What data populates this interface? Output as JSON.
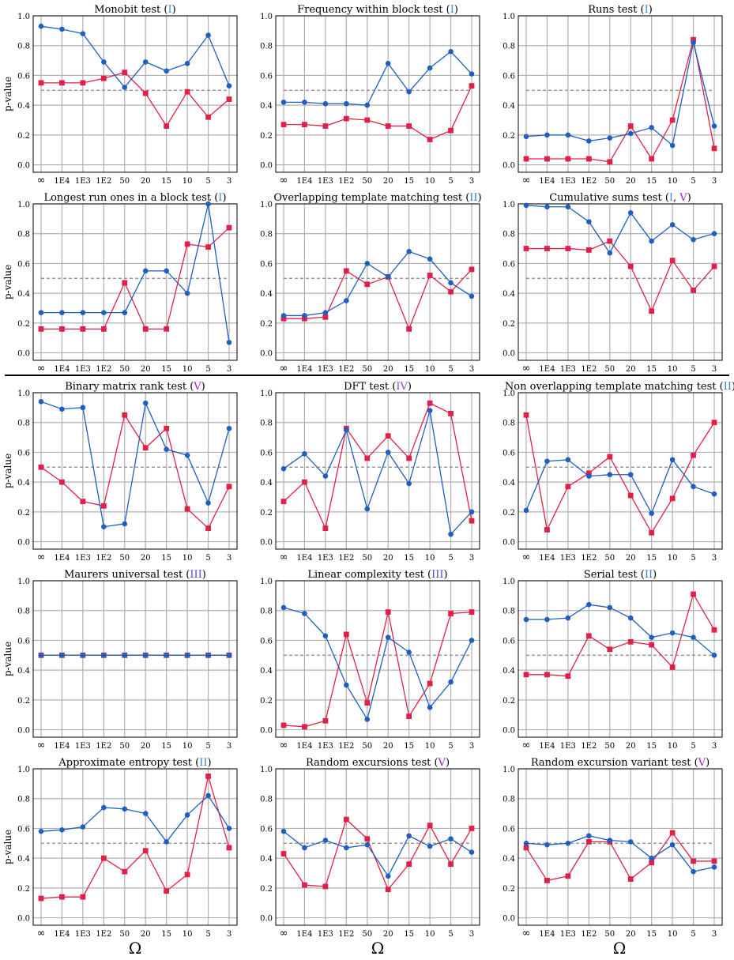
{
  "figure": {
    "xlabel": "Ω",
    "ylabel": "p-value",
    "x_categories": [
      "∞",
      "1E4",
      "1E3",
      "1E2",
      "50",
      "20",
      "15",
      "10",
      "5",
      "3"
    ],
    "ylim": [
      0,
      1
    ],
    "yticks": [
      "0.0",
      "0.2",
      "0.4",
      "0.6",
      "0.8",
      "1.0"
    ],
    "reference_line": 0.5,
    "grid": true,
    "colors": {
      "blue_series": "#1f5fbf",
      "red_series": "#e0204a",
      "reference_line": "#888888",
      "grid": "#b0b0b0",
      "tag_I": "#3a8fd6",
      "tag_II": "#3a78d6",
      "tag_III": "#4a4ad0",
      "tag_IV": "#8a4ae0",
      "tag_V": "#a020c0"
    }
  },
  "chart_data": [
    {
      "type": "line",
      "title": "Monobit test",
      "tags": [
        {
          "text": "I",
          "color": "#3a8fd6"
        }
      ],
      "categories": [
        "∞",
        "1E4",
        "1E3",
        "1E2",
        "50",
        "20",
        "15",
        "10",
        "5",
        "3"
      ],
      "ylim": [
        0,
        1
      ],
      "ylabel": "p-value",
      "series": [
        {
          "marker": "circle",
          "color": "#1f5fbf",
          "values": [
            0.93,
            0.91,
            0.88,
            0.69,
            0.52,
            0.69,
            0.63,
            0.68,
            0.87,
            0.53
          ]
        },
        {
          "marker": "square",
          "color": "#e0204a",
          "values": [
            0.55,
            0.55,
            0.55,
            0.58,
            0.62,
            0.48,
            0.26,
            0.49,
            0.32,
            0.44
          ]
        }
      ]
    },
    {
      "type": "line",
      "title": "Frequency within block test",
      "tags": [
        {
          "text": "I",
          "color": "#3a8fd6"
        }
      ],
      "categories": [
        "∞",
        "1E4",
        "1E3",
        "1E2",
        "50",
        "20",
        "15",
        "10",
        "5",
        "3"
      ],
      "ylim": [
        0,
        1
      ],
      "series": [
        {
          "marker": "circle",
          "color": "#1f5fbf",
          "values": [
            0.42,
            0.42,
            0.41,
            0.41,
            0.4,
            0.68,
            0.49,
            0.65,
            0.76,
            0.61
          ]
        },
        {
          "marker": "square",
          "color": "#e0204a",
          "values": [
            0.27,
            0.27,
            0.26,
            0.31,
            0.3,
            0.26,
            0.26,
            0.17,
            0.23,
            0.53
          ]
        }
      ]
    },
    {
      "type": "line",
      "title": "Runs test",
      "tags": [
        {
          "text": "I",
          "color": "#3a8fd6"
        }
      ],
      "categories": [
        "∞",
        "1E4",
        "1E3",
        "1E2",
        "50",
        "20",
        "15",
        "10",
        "5",
        "3"
      ],
      "ylim": [
        0,
        1
      ],
      "series": [
        {
          "marker": "circle",
          "color": "#1f5fbf",
          "values": [
            0.19,
            0.2,
            0.2,
            0.16,
            0.18,
            0.21,
            0.25,
            0.13,
            0.82,
            0.26
          ]
        },
        {
          "marker": "square",
          "color": "#e0204a",
          "values": [
            0.04,
            0.04,
            0.04,
            0.04,
            0.02,
            0.26,
            0.04,
            0.3,
            0.84,
            0.11
          ]
        }
      ]
    },
    {
      "type": "line",
      "title": "Longest run ones in a block test",
      "tags": [
        {
          "text": "I",
          "color": "#3a8fd6"
        }
      ],
      "categories": [
        "∞",
        "1E4",
        "1E3",
        "1E2",
        "50",
        "20",
        "15",
        "10",
        "5",
        "3"
      ],
      "ylim": [
        0,
        1
      ],
      "ylabel": "p-value",
      "series": [
        {
          "marker": "circle",
          "color": "#1f5fbf",
          "values": [
            0.27,
            0.27,
            0.27,
            0.27,
            0.27,
            0.55,
            0.55,
            0.4,
            1.0,
            0.07
          ]
        },
        {
          "marker": "square",
          "color": "#e0204a",
          "values": [
            0.16,
            0.16,
            0.16,
            0.16,
            0.47,
            0.16,
            0.16,
            0.73,
            0.71,
            0.84
          ]
        }
      ]
    },
    {
      "type": "line",
      "title": "Overlapping template matching test",
      "tags": [
        {
          "text": "II",
          "color": "#3a78d6"
        }
      ],
      "categories": [
        "∞",
        "1E4",
        "1E3",
        "1E2",
        "50",
        "20",
        "15",
        "10",
        "5",
        "3"
      ],
      "ylim": [
        0,
        1
      ],
      "series": [
        {
          "marker": "circle",
          "color": "#1f5fbf",
          "values": [
            0.25,
            0.25,
            0.27,
            0.35,
            0.6,
            0.51,
            0.68,
            0.63,
            0.47,
            0.38
          ]
        },
        {
          "marker": "square",
          "color": "#e0204a",
          "values": [
            0.23,
            0.23,
            0.24,
            0.55,
            0.46,
            0.51,
            0.16,
            0.52,
            0.41,
            0.56
          ]
        }
      ]
    },
    {
      "type": "line",
      "title": "Cumulative sums test",
      "tags": [
        {
          "text": "I",
          "color": "#3a8fd6"
        },
        {
          "text": "V",
          "color": "#a020c0"
        }
      ],
      "categories": [
        "∞",
        "1E4",
        "1E3",
        "1E2",
        "50",
        "20",
        "15",
        "10",
        "5",
        "3"
      ],
      "ylim": [
        0,
        1
      ],
      "series": [
        {
          "marker": "circle",
          "color": "#1f5fbf",
          "values": [
            0.99,
            0.98,
            0.98,
            0.88,
            0.67,
            0.94,
            0.75,
            0.86,
            0.76,
            0.8
          ]
        },
        {
          "marker": "square",
          "color": "#e0204a",
          "values": [
            0.7,
            0.7,
            0.7,
            0.69,
            0.75,
            0.58,
            0.28,
            0.62,
            0.42,
            0.58
          ]
        }
      ]
    },
    {
      "type": "line",
      "title": "Binary matrix rank test",
      "tags": [
        {
          "text": "V",
          "color": "#a020c0"
        }
      ],
      "categories": [
        "∞",
        "1E4",
        "1E3",
        "1E2",
        "50",
        "20",
        "15",
        "10",
        "5",
        "3"
      ],
      "ylim": [
        0,
        1
      ],
      "ylabel": "p-value",
      "series": [
        {
          "marker": "circle",
          "color": "#1f5fbf",
          "values": [
            0.94,
            0.89,
            0.9,
            0.1,
            0.12,
            0.93,
            0.62,
            0.58,
            0.26,
            0.76
          ]
        },
        {
          "marker": "square",
          "color": "#e0204a",
          "values": [
            0.5,
            0.4,
            0.27,
            0.24,
            0.85,
            0.63,
            0.76,
            0.22,
            0.09,
            0.37
          ]
        }
      ]
    },
    {
      "type": "line",
      "title": "DFT test",
      "tags": [
        {
          "text": "IV",
          "color": "#8a4ae0"
        }
      ],
      "categories": [
        "∞",
        "1E4",
        "1E3",
        "1E2",
        "50",
        "20",
        "15",
        "10",
        "5",
        "3"
      ],
      "ylim": [
        0,
        1
      ],
      "series": [
        {
          "marker": "circle",
          "color": "#1f5fbf",
          "values": [
            0.49,
            0.59,
            0.44,
            0.75,
            0.22,
            0.6,
            0.39,
            0.88,
            0.05,
            0.2
          ]
        },
        {
          "marker": "square",
          "color": "#e0204a",
          "values": [
            0.27,
            0.4,
            0.09,
            0.76,
            0.56,
            0.71,
            0.56,
            0.93,
            0.86,
            0.14
          ]
        }
      ]
    },
    {
      "type": "line",
      "title": "Non overlapping template matching test",
      "tags": [
        {
          "text": "II",
          "color": "#3a78d6"
        }
      ],
      "categories": [
        "∞",
        "1E4",
        "1E3",
        "1E2",
        "50",
        "20",
        "15",
        "10",
        "5",
        "3"
      ],
      "ylim": [
        0,
        1
      ],
      "series": [
        {
          "marker": "circle",
          "color": "#1f5fbf",
          "values": [
            0.21,
            0.54,
            0.55,
            0.44,
            0.45,
            0.45,
            0.19,
            0.55,
            0.37,
            0.32
          ]
        },
        {
          "marker": "square",
          "color": "#e0204a",
          "values": [
            0.85,
            0.08,
            0.37,
            0.46,
            0.57,
            0.31,
            0.06,
            0.29,
            0.58,
            0.8
          ]
        }
      ]
    },
    {
      "type": "line",
      "title": "Maurers universal test",
      "tags": [
        {
          "text": "III",
          "color": "#4a4ad0"
        }
      ],
      "categories": [
        "∞",
        "1E4",
        "1E3",
        "1E2",
        "50",
        "20",
        "15",
        "10",
        "5",
        "3"
      ],
      "ylim": [
        0,
        1
      ],
      "ylabel": "p-value",
      "series": [
        {
          "marker": "circle",
          "color": "#1f5fbf",
          "values": [
            0.5,
            0.5,
            0.5,
            0.5,
            0.5,
            0.5,
            0.5,
            0.5,
            0.5,
            0.5
          ]
        },
        {
          "marker": "square",
          "color": "#e0204a",
          "values": [
            0.5,
            0.5,
            0.5,
            0.5,
            0.5,
            0.5,
            0.5,
            0.5,
            0.5,
            0.5
          ]
        }
      ]
    },
    {
      "type": "line",
      "title": "Linear complexity test",
      "tags": [
        {
          "text": "III",
          "color": "#4a4ad0"
        }
      ],
      "categories": [
        "∞",
        "1E4",
        "1E3",
        "1E2",
        "50",
        "20",
        "15",
        "10",
        "5",
        "3"
      ],
      "ylim": [
        0,
        1
      ],
      "series": [
        {
          "marker": "circle",
          "color": "#1f5fbf",
          "values": [
            0.82,
            0.78,
            0.63,
            0.3,
            0.07,
            0.62,
            0.52,
            0.15,
            0.32,
            0.6
          ]
        },
        {
          "marker": "square",
          "color": "#e0204a",
          "values": [
            0.03,
            0.02,
            0.06,
            0.64,
            0.18,
            0.79,
            0.09,
            0.31,
            0.78,
            0.79
          ]
        }
      ]
    },
    {
      "type": "line",
      "title": "Serial test",
      "tags": [
        {
          "text": "II",
          "color": "#3a78d6"
        }
      ],
      "categories": [
        "∞",
        "1E4",
        "1E3",
        "1E2",
        "50",
        "20",
        "15",
        "10",
        "5",
        "3"
      ],
      "ylim": [
        0,
        1
      ],
      "series": [
        {
          "marker": "circle",
          "color": "#1f5fbf",
          "values": [
            0.74,
            0.74,
            0.75,
            0.84,
            0.82,
            0.75,
            0.62,
            0.65,
            0.62,
            0.5
          ]
        },
        {
          "marker": "square",
          "color": "#e0204a",
          "values": [
            0.37,
            0.37,
            0.36,
            0.63,
            0.54,
            0.59,
            0.57,
            0.42,
            0.91,
            0.67
          ]
        }
      ]
    },
    {
      "type": "line",
      "title": "Approximate entropy test",
      "tags": [
        {
          "text": "II",
          "color": "#3a78d6"
        }
      ],
      "categories": [
        "∞",
        "1E4",
        "1E3",
        "1E2",
        "50",
        "20",
        "15",
        "10",
        "5",
        "3"
      ],
      "ylim": [
        0,
        1
      ],
      "ylabel": "p-value",
      "series": [
        {
          "marker": "circle",
          "color": "#1f5fbf",
          "values": [
            0.58,
            0.59,
            0.61,
            0.74,
            0.73,
            0.7,
            0.51,
            0.69,
            0.82,
            0.6
          ]
        },
        {
          "marker": "square",
          "color": "#e0204a",
          "values": [
            0.13,
            0.14,
            0.14,
            0.4,
            0.31,
            0.45,
            0.18,
            0.29,
            0.95,
            0.47
          ]
        }
      ]
    },
    {
      "type": "line",
      "title": "Random excursions test",
      "tags": [
        {
          "text": "V",
          "color": "#a020c0"
        }
      ],
      "categories": [
        "∞",
        "1E4",
        "1E3",
        "1E2",
        "50",
        "20",
        "15",
        "10",
        "5",
        "3"
      ],
      "ylim": [
        0,
        1
      ],
      "series": [
        {
          "marker": "circle",
          "color": "#1f5fbf",
          "values": [
            0.58,
            0.47,
            0.52,
            0.47,
            0.49,
            0.28,
            0.55,
            0.48,
            0.53,
            0.44
          ]
        },
        {
          "marker": "square",
          "color": "#e0204a",
          "values": [
            0.43,
            0.22,
            0.21,
            0.66,
            0.53,
            0.19,
            0.36,
            0.62,
            0.36,
            0.6
          ]
        }
      ]
    },
    {
      "type": "line",
      "title": "Random excursion variant test",
      "tags": [
        {
          "text": "V",
          "color": "#a020c0"
        }
      ],
      "categories": [
        "∞",
        "1E4",
        "1E3",
        "1E2",
        "50",
        "20",
        "15",
        "10",
        "5",
        "3"
      ],
      "ylim": [
        0,
        1
      ],
      "series": [
        {
          "marker": "circle",
          "color": "#1f5fbf",
          "values": [
            0.5,
            0.49,
            0.5,
            0.55,
            0.52,
            0.51,
            0.4,
            0.49,
            0.31,
            0.34
          ]
        },
        {
          "marker": "square",
          "color": "#e0204a",
          "values": [
            0.47,
            0.25,
            0.28,
            0.51,
            0.51,
            0.26,
            0.37,
            0.57,
            0.38,
            0.38
          ]
        }
      ]
    }
  ]
}
